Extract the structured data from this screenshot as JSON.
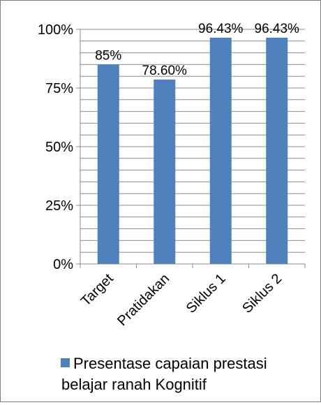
{
  "chart_data": {
    "type": "bar",
    "categories": [
      "Target",
      "Pratidakan",
      "Siklus 1",
      "Siklus 2"
    ],
    "series": [
      {
        "name": "Presentase  capaian prestasi belajar ranah Kognitif",
        "values": [
          85,
          78.6,
          96.43,
          96.43
        ],
        "color": "#4f81bd"
      }
    ],
    "data_labels": [
      "85%",
      "78.60%",
      "96.43%",
      "96.43%"
    ],
    "y_ticks": [
      0,
      25,
      50,
      75,
      100
    ],
    "y_tick_labels": [
      "0%",
      "25%",
      "50%",
      "75%",
      "100%"
    ],
    "ylim": [
      0,
      100
    ],
    "grid": true,
    "legend_position": "bottom",
    "legend_lines": [
      "Presentase  capaian prestasi",
      "belajar ranah Kognitif"
    ]
  }
}
